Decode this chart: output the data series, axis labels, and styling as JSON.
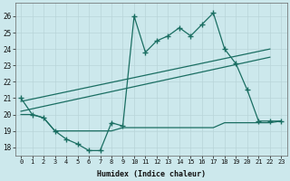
{
  "xlabel": "Humidex (Indice chaleur)",
  "ylabel": "",
  "bg_color": "#cce8ec",
  "line_color": "#1a6e62",
  "xlim": [
    -0.5,
    23.5
  ],
  "ylim": [
    17.5,
    26.8
  ],
  "yticks": [
    18,
    19,
    20,
    21,
    22,
    23,
    24,
    25,
    26
  ],
  "xticks": [
    0,
    1,
    2,
    3,
    4,
    5,
    6,
    7,
    8,
    9,
    10,
    11,
    12,
    13,
    14,
    15,
    16,
    17,
    18,
    19,
    20,
    21,
    22,
    23
  ],
  "series1_x": [
    0,
    1,
    2,
    3,
    4,
    5,
    6,
    7,
    8,
    9,
    10,
    11,
    12,
    13,
    14,
    15,
    16,
    17,
    18,
    19,
    20,
    21,
    22,
    23
  ],
  "series1_y": [
    21.0,
    20.0,
    19.8,
    19.0,
    18.5,
    18.2,
    17.8,
    17.8,
    19.5,
    19.3,
    26.0,
    23.8,
    24.5,
    24.8,
    25.3,
    24.8,
    25.5,
    26.2,
    24.0,
    23.1,
    21.5,
    19.6,
    19.6,
    19.6
  ],
  "series2_x": [
    0,
    1,
    2,
    3,
    4,
    5,
    6,
    7,
    8,
    9,
    10,
    11,
    12,
    13,
    14,
    15,
    16,
    17,
    18,
    19,
    20,
    21,
    22,
    23
  ],
  "series2_y": [
    20.0,
    20.0,
    19.8,
    19.0,
    19.0,
    19.0,
    19.0,
    19.0,
    19.0,
    19.2,
    19.2,
    19.2,
    19.2,
    19.2,
    19.2,
    19.2,
    19.2,
    19.2,
    19.5,
    19.5,
    19.5,
    19.5,
    19.5,
    19.6
  ],
  "series3_x": [
    0,
    22
  ],
  "series3_y": [
    20.2,
    23.5
  ],
  "series4_x": [
    0,
    22
  ],
  "series4_y": [
    20.8,
    24.0
  ]
}
